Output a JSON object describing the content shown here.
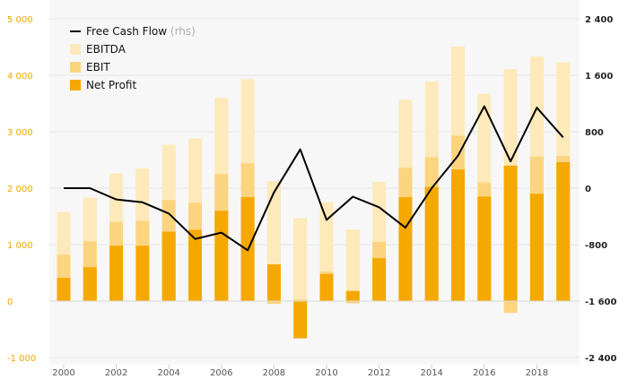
{
  "chart_data": {
    "type": "bar",
    "x_tick_labels": [
      "2000",
      "2002",
      "2004",
      "2006",
      "2008",
      "2010",
      "2012",
      "2014",
      "2016",
      "2018"
    ],
    "categories": [
      "2000",
      "2001",
      "2002",
      "2003",
      "2004",
      "2005",
      "2006",
      "2007",
      "2008",
      "2009",
      "2010",
      "2011",
      "2012",
      "2013",
      "2014",
      "2015",
      "2016",
      "2017",
      "2018",
      "2019"
    ],
    "series": [
      {
        "name": "EBITDA",
        "color": "#fde9b9",
        "axis": "left",
        "values": [
          1580,
          1830,
          2260,
          2350,
          2770,
          2880,
          3600,
          3930,
          2130,
          1470,
          1750,
          1270,
          2110,
          3570,
          3890,
          4510,
          3670,
          4110,
          4330,
          4230
        ]
      },
      {
        "name": "EBIT",
        "color": "#fcd47f",
        "axis": "left",
        "values": [
          820,
          1060,
          1400,
          1420,
          1790,
          1740,
          2250,
          2440,
          -50,
          30,
          520,
          -40,
          1050,
          2360,
          2550,
          2930,
          2100,
          -210,
          2560,
          2570
        ]
      },
      {
        "name": "Net Profit",
        "color": "#f5a800",
        "axis": "left",
        "values": [
          410,
          600,
          980,
          980,
          1230,
          1260,
          1600,
          1840,
          650,
          -660,
          480,
          180,
          760,
          1840,
          2020,
          2330,
          1850,
          2400,
          1900,
          2460
        ]
      },
      {
        "name": "Free Cash Flow",
        "suffix": "(rhs)",
        "color": "#000000",
        "axis": "right",
        "render": "line",
        "values": [
          0,
          0,
          -160,
          -200,
          -360,
          -720,
          -630,
          -880,
          -60,
          550,
          -450,
          -120,
          -270,
          -560,
          0,
          460,
          1160,
          380,
          1140,
          720
        ]
      }
    ],
    "left_axis": {
      "ylim": [
        -1000,
        5000
      ],
      "ticks": [
        -1000,
        0,
        1000,
        2000,
        3000,
        4000,
        5000
      ],
      "tick_labels": [
        "-1 000",
        "0",
        "1 000",
        "2 000",
        "3 000",
        "4 000",
        "5 000"
      ]
    },
    "right_axis": {
      "ylim": [
        -2400,
        2400
      ],
      "ticks": [
        -2400,
        -1600,
        -800,
        0,
        800,
        1600,
        2400
      ],
      "tick_labels": [
        "-2 400",
        "-1 600",
        "-800",
        "0",
        "800",
        "1 600",
        "2 400"
      ]
    },
    "grid": true,
    "legend": "top-left",
    "legend_order": [
      "Free Cash Flow",
      "EBITDA",
      "EBIT",
      "Net Profit"
    ],
    "colors": {
      "left_axis_text": "#f0a500",
      "right_axis_text": "#222222",
      "grid": "#e6e6e6",
      "plot_bg": "#f7f7f7"
    }
  }
}
